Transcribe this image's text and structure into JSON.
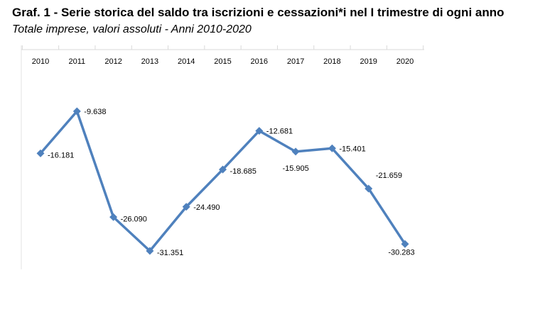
{
  "title": "Graf. 1 - Serie storica del saldo tra iscrizioni e cessazioni*i nel I trimestre di ogni anno",
  "subtitle": "Totale imprese, valori assoluti - Anni 2010-2020",
  "chart_data": {
    "type": "line",
    "title": "Graf. 1 - Serie storica del saldo tra iscrizioni e cessazioni*i nel I trimestre di ogni anno",
    "subtitle": "Totale imprese, valori assoluti - Anni 2010-2020",
    "categories": [
      "2010",
      "2011",
      "2012",
      "2013",
      "2014",
      "2015",
      "2016",
      "2017",
      "2018",
      "2019",
      "2020"
    ],
    "values": [
      -16181,
      -9638,
      -26090,
      -31351,
      -24490,
      -18685,
      -12681,
      -15905,
      -15401,
      -21659,
      -30283
    ],
    "data_labels": [
      "-16.181",
      "-9.638",
      "-26.090",
      "-31.351",
      "-24.490",
      "-18.685",
      "-12.681",
      "-15.905",
      "-15.401",
      "-21.659",
      "-30.283"
    ],
    "xlabel": "",
    "ylabel": "",
    "x_axis_position": "top",
    "grid": false,
    "legend": "none",
    "color": "#4f81bd"
  }
}
